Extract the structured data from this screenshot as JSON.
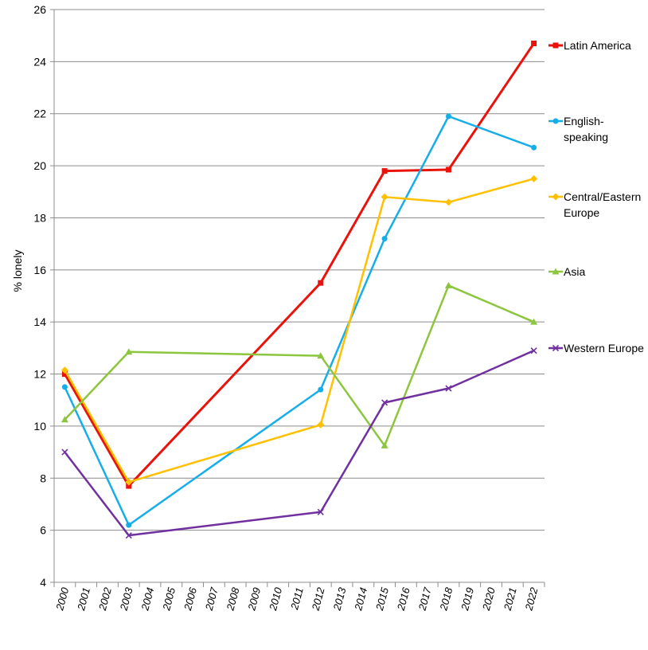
{
  "chart_data": {
    "type": "line",
    "title": "",
    "xlabel": "",
    "ylabel": "% lonely",
    "ylim": [
      4,
      26
    ],
    "yticks": [
      4,
      6,
      8,
      10,
      12,
      14,
      16,
      18,
      20,
      22,
      24,
      26
    ],
    "grid": "horizontal",
    "legend_position": "right",
    "categories": [
      "2000",
      "2001",
      "2002",
      "2003",
      "2004",
      "2005",
      "2006",
      "2007",
      "2008",
      "2009",
      "2010",
      "2011",
      "2012",
      "2013",
      "2014",
      "2015",
      "2016",
      "2017",
      "2018",
      "2019",
      "2020",
      "2021",
      "2022"
    ],
    "series": [
      {
        "name": "Latin America",
        "legend_lines": [
          "Latin America"
        ],
        "color": "#e8140c",
        "marker": "square",
        "width": 3,
        "points": [
          [
            2000,
            12.0
          ],
          [
            2003,
            7.7
          ],
          [
            2012,
            15.5
          ],
          [
            2015,
            19.8
          ],
          [
            2018,
            19.85
          ],
          [
            2022,
            24.7
          ]
        ]
      },
      {
        "name": "English-speaking",
        "legend_lines": [
          "English-",
          "speaking"
        ],
        "color": "#16aee8",
        "marker": "circle",
        "width": 2.5,
        "points": [
          [
            2000,
            11.5
          ],
          [
            2003,
            6.2
          ],
          [
            2012,
            11.4
          ],
          [
            2015,
            17.2
          ],
          [
            2018,
            21.9
          ],
          [
            2022,
            20.7
          ]
        ]
      },
      {
        "name": "Central/Eastern Europe",
        "legend_lines": [
          "Central/Eastern",
          "Europe"
        ],
        "color": "#ffc000",
        "marker": "diamond",
        "width": 2.5,
        "points": [
          [
            2000,
            12.15
          ],
          [
            2003,
            7.85
          ],
          [
            2012,
            10.05
          ],
          [
            2015,
            18.8
          ],
          [
            2018,
            18.6
          ],
          [
            2022,
            19.5
          ]
        ]
      },
      {
        "name": "Asia",
        "legend_lines": [
          "Asia"
        ],
        "color": "#8cc63e",
        "marker": "triangle",
        "width": 2.5,
        "points": [
          [
            2000,
            10.25
          ],
          [
            2003,
            12.85
          ],
          [
            2012,
            12.7
          ],
          [
            2015,
            9.25
          ],
          [
            2018,
            15.4
          ],
          [
            2022,
            14.0
          ]
        ]
      },
      {
        "name": "Western Europe",
        "legend_lines": [
          "Western Europe"
        ],
        "color": "#7030a0",
        "marker": "x",
        "width": 2.5,
        "points": [
          [
            2000,
            9.0
          ],
          [
            2003,
            5.8
          ],
          [
            2012,
            6.7
          ],
          [
            2015,
            10.9
          ],
          [
            2018,
            11.45
          ],
          [
            2022,
            12.9
          ]
        ]
      }
    ]
  }
}
